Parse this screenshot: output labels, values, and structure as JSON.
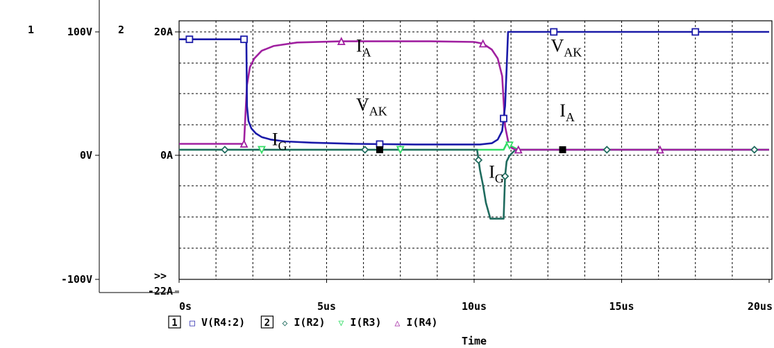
{
  "colors": {
    "v_r4": "#1a1aa8",
    "i_r2": "#1f6b5e",
    "i_r3": "#33dd66",
    "i_r4": "#a020a0",
    "grid": "#000000",
    "axis": "#000000",
    "marker_black": "#000000"
  },
  "chart_data": {
    "type": "line",
    "title": "",
    "xlabel": "Time",
    "x_unit": "us",
    "xlim": [
      0,
      20
    ],
    "x_ticks": [
      {
        "v": 0,
        "label": "0s"
      },
      {
        "v": 5,
        "label": "5us"
      },
      {
        "v": 10,
        "label": "10us"
      },
      {
        "v": 15,
        "label": "15us"
      },
      {
        "v": 20,
        "label": "20us"
      }
    ],
    "grid": true,
    "grid_x_step": 1.25,
    "axes": [
      {
        "id": "1",
        "ylim": [
          -100,
          100
        ],
        "ticks": [
          {
            "v": 100,
            "label": "100V"
          },
          {
            "v": 0,
            "label": "0V"
          },
          {
            "v": -100,
            "label": "-100V"
          }
        ]
      },
      {
        "id": "2",
        "ylim": [
          -22,
          20
        ],
        "ticks": [
          {
            "v": 20,
            "label": "20A"
          },
          {
            "v": 0,
            "label": "0A"
          },
          {
            "v": -22,
            "label": "-22A"
          }
        ]
      }
    ],
    "axis_marker": ">>",
    "legend_position": "bottom",
    "legend": [
      {
        "axis_box": "1",
        "symbol": "□",
        "label": "V(R4:2)",
        "color_key": "v_r4"
      },
      {
        "axis_box": "2",
        "symbol": "◇",
        "label": "I(R2)",
        "color_key": "i_r2"
      },
      {
        "symbol": "▽",
        "label": "I(R3)",
        "color_key": "i_r3"
      },
      {
        "symbol": "△",
        "label": "I(R4)",
        "color_key": "i_r4"
      }
    ],
    "series": [
      {
        "name": "V(R4:2)",
        "axis": "1",
        "color_key": "v_r4",
        "marker": "square",
        "x": [
          0,
          2.28,
          2.3,
          2.35,
          2.45,
          2.6,
          2.8,
          3.1,
          3.6,
          4.5,
          6,
          8,
          9.5,
          10.2,
          10.6,
          10.8,
          10.95,
          11.05,
          11.1,
          11.15,
          20
        ],
        "y": [
          94,
          94,
          40,
          28,
          22,
          18,
          15,
          13,
          11.5,
          10.5,
          9.5,
          9,
          9,
          9,
          10,
          13,
          20,
          40,
          70,
          100,
          100
        ],
        "marker_x": [
          0.35,
          2.2,
          6.8,
          11.0,
          12.7,
          17.5
        ]
      },
      {
        "name": "I(R2)",
        "axis": "2",
        "color_key": "i_r2",
        "marker": "diamond",
        "x": [
          0,
          10.1,
          10.2,
          10.3,
          10.4,
          10.55,
          10.65,
          11.0,
          11.05,
          11.1,
          11.2,
          11.4,
          20
        ],
        "y": [
          0,
          0,
          -3.5,
          -6,
          -9,
          -11.7,
          -11.7,
          -11.7,
          -4.5,
          -2,
          -1,
          0,
          0
        ],
        "marker_x": [
          1.55,
          6.3,
          10.15,
          11.05,
          14.5,
          19.5
        ]
      },
      {
        "name": "I(R3)",
        "axis": "2",
        "color_key": "i_r3",
        "marker": "triangle-down",
        "x": [
          0,
          11.0,
          11.1,
          11.3,
          11.5,
          20
        ],
        "y": [
          0,
          0,
          1,
          0.5,
          0,
          0
        ],
        "marker_x": [
          2.8,
          7.5,
          11.2
        ]
      },
      {
        "name": "I(R4)",
        "axis": "2",
        "color_key": "i_r4",
        "marker": "triangle-up",
        "x": [
          0,
          2.2,
          2.25,
          2.3,
          2.4,
          2.55,
          2.8,
          3.2,
          4,
          5.5,
          7,
          8.5,
          10,
          10.3,
          10.6,
          10.8,
          10.95,
          11.05,
          11.15,
          11.2,
          11.4,
          20
        ],
        "y": [
          1,
          1,
          6,
          11,
          14,
          15.5,
          16.8,
          17.6,
          18.2,
          18.4,
          18.4,
          18.4,
          18.3,
          18,
          17,
          15.5,
          12.5,
          4,
          1.5,
          0.5,
          0,
          0
        ],
        "marker_x": [
          2.2,
          5.5,
          10.3,
          11.5,
          16.3
        ]
      }
    ],
    "extra_markers": [
      {
        "shape": "filled-square",
        "x": 6.8,
        "axis": "2",
        "y": 0
      },
      {
        "shape": "filled-square",
        "x": 13.0,
        "axis": "2",
        "y": 0
      }
    ],
    "annotations": [
      {
        "text": "I",
        "sub": "A",
        "x": 6.0,
        "axis": "2",
        "y": 17.6
      },
      {
        "text": "V",
        "sub": "AK",
        "x": 12.6,
        "axis": "2",
        "y": 17.6
      },
      {
        "text": "V",
        "sub": "AK",
        "x": 6.0,
        "axis": "2",
        "y": 7.6
      },
      {
        "text": "I",
        "sub": "A",
        "x": 12.9,
        "axis": "2",
        "y": 6.6
      },
      {
        "text": "I",
        "sub": "G",
        "x": 3.15,
        "axis": "2",
        "y": 1.7
      },
      {
        "text": "I",
        "sub": "G",
        "x": 10.5,
        "axis": "2",
        "y": -3.8
      }
    ]
  }
}
